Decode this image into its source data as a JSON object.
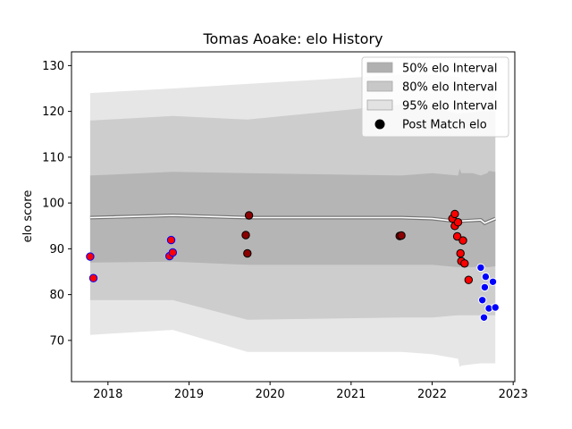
{
  "chart_data": {
    "type": "scatter",
    "title": "Tomas Aoake: elo History",
    "xlabel": "",
    "ylabel": "elo score",
    "xlim": [
      2017.55,
      2023.02
    ],
    "ylim": [
      61.0,
      133.0
    ],
    "x_ticks": [
      2018,
      2019,
      2020,
      2021,
      2022,
      2023
    ],
    "x_tick_labels": [
      "2018",
      "2019",
      "2020",
      "2021",
      "2022",
      "2023"
    ],
    "y_ticks": [
      70,
      80,
      90,
      100,
      110,
      120,
      130
    ],
    "y_tick_labels": [
      "70",
      "80",
      "90",
      "100",
      "110",
      "120",
      "130"
    ],
    "grid": false,
    "legend_position": "top-right",
    "legend": [
      {
        "label": "50% elo Interval",
        "kind": "band",
        "color": "#b0b0b0"
      },
      {
        "label": "80% elo Interval",
        "kind": "band",
        "color": "#c8c8c8"
      },
      {
        "label": "95% elo Interval",
        "kind": "band",
        "color": "#e2e2e2"
      },
      {
        "label": "Post Match elo",
        "kind": "marker",
        "color": "#000000"
      }
    ],
    "mean_line": {
      "x": [
        2017.78,
        2018.8,
        2019.72,
        2020.5,
        2021.62,
        2022.0,
        2022.3,
        2022.5,
        2022.6,
        2022.65,
        2022.7,
        2022.78
      ],
      "y": [
        96.8,
        97.3,
        96.8,
        96.8,
        96.8,
        96.6,
        96.0,
        96.2,
        96.3,
        95.6,
        96.0,
        96.6
      ]
    },
    "band_95": {
      "x": [
        2017.78,
        2018.8,
        2019.72,
        2021.62,
        2022.0,
        2022.32,
        2022.34,
        2022.36,
        2022.5,
        2022.6,
        2022.78
      ],
      "upper": [
        124.0,
        125.0,
        126.0,
        128.0,
        128.0,
        127.5,
        127.5,
        126.5,
        126.5,
        126.5,
        127.0
      ],
      "lower": [
        71.2,
        72.3,
        67.5,
        67.5,
        67.0,
        66.0,
        64.2,
        64.5,
        64.8,
        65.0,
        65.0
      ]
    },
    "band_80": {
      "x": [
        2017.78,
        2018.8,
        2019.72,
        2021.62,
        2022.0,
        2022.32,
        2022.5,
        2022.6,
        2022.78
      ],
      "upper": [
        118.0,
        119.0,
        118.2,
        121.5,
        120.8,
        119.5,
        119.8,
        120.0,
        120.0
      ],
      "lower": [
        78.8,
        78.8,
        74.5,
        75.0,
        75.0,
        75.5,
        75.5,
        75.5,
        75.5
      ]
    },
    "band_50": {
      "x": [
        2017.78,
        2018.8,
        2019.72,
        2021.62,
        2022.0,
        2022.32,
        2022.34,
        2022.36,
        2022.5,
        2022.6,
        2022.68,
        2022.7,
        2022.78
      ],
      "upper": [
        106.0,
        106.8,
        106.5,
        106.0,
        106.5,
        106.0,
        107.5,
        106.5,
        106.5,
        106.0,
        106.5,
        107.0,
        106.8
      ],
      "lower": [
        87.0,
        87.2,
        86.5,
        86.5,
        86.5,
        86.0,
        86.0,
        86.0,
        86.0,
        86.2,
        86.0,
        86.0,
        86.2
      ]
    },
    "series": [
      {
        "name": "Post Match elo",
        "points": [
          {
            "x": 2017.78,
            "y": 88.3,
            "fill": "#ff0000",
            "edge": "#0000ff"
          },
          {
            "x": 2017.82,
            "y": 83.6,
            "fill": "#ff0000",
            "edge": "#0000ff"
          },
          {
            "x": 2018.76,
            "y": 88.4,
            "fill": "#ff0000",
            "edge": "#0000ff"
          },
          {
            "x": 2018.78,
            "y": 91.9,
            "fill": "#ff0000",
            "edge": "#0000ff"
          },
          {
            "x": 2018.8,
            "y": 89.2,
            "fill": "#ff0000",
            "edge": "#0000ff"
          },
          {
            "x": 2019.7,
            "y": 93.0,
            "fill": "#8b0000",
            "edge": "#000000"
          },
          {
            "x": 2019.72,
            "y": 89.0,
            "fill": "#8b0000",
            "edge": "#000000"
          },
          {
            "x": 2019.74,
            "y": 97.3,
            "fill": "#8b0000",
            "edge": "#000000"
          },
          {
            "x": 2021.6,
            "y": 92.8,
            "fill": "#8b0000",
            "edge": "#000000"
          },
          {
            "x": 2021.62,
            "y": 92.9,
            "fill": "#8b0000",
            "edge": "#000000"
          },
          {
            "x": 2022.25,
            "y": 96.6,
            "fill": "#ff0000",
            "edge": "#000000"
          },
          {
            "x": 2022.28,
            "y": 97.6,
            "fill": "#ff0000",
            "edge": "#000000"
          },
          {
            "x": 2022.28,
            "y": 95.0,
            "fill": "#ff0000",
            "edge": "#000000"
          },
          {
            "x": 2022.32,
            "y": 95.8,
            "fill": "#ff0000",
            "edge": "#000000"
          },
          {
            "x": 2022.31,
            "y": 92.7,
            "fill": "#ff0000",
            "edge": "#000000"
          },
          {
            "x": 2022.38,
            "y": 91.8,
            "fill": "#ff0000",
            "edge": "#000000"
          },
          {
            "x": 2022.35,
            "y": 89.0,
            "fill": "#ff0000",
            "edge": "#000000"
          },
          {
            "x": 2022.36,
            "y": 87.3,
            "fill": "#ff0000",
            "edge": "#000000"
          },
          {
            "x": 2022.4,
            "y": 86.8,
            "fill": "#ff0000",
            "edge": "#000000"
          },
          {
            "x": 2022.45,
            "y": 83.2,
            "fill": "#ff0000",
            "edge": "#000000"
          },
          {
            "x": 2022.6,
            "y": 85.9,
            "fill": "#0000ff",
            "edge": "#ffffff"
          },
          {
            "x": 2022.66,
            "y": 83.9,
            "fill": "#0000ff",
            "edge": "#ffffff"
          },
          {
            "x": 2022.75,
            "y": 82.8,
            "fill": "#0000ff",
            "edge": "#ffffff"
          },
          {
            "x": 2022.65,
            "y": 81.6,
            "fill": "#0000ff",
            "edge": "#ffffff"
          },
          {
            "x": 2022.62,
            "y": 78.8,
            "fill": "#0000ff",
            "edge": "#ffffff"
          },
          {
            "x": 2022.7,
            "y": 77.0,
            "fill": "#0000ff",
            "edge": "#ffffff"
          },
          {
            "x": 2022.78,
            "y": 77.2,
            "fill": "#0000ff",
            "edge": "#ffffff"
          },
          {
            "x": 2022.64,
            "y": 75.0,
            "fill": "#0000ff",
            "edge": "#ffffff"
          }
        ]
      }
    ]
  }
}
